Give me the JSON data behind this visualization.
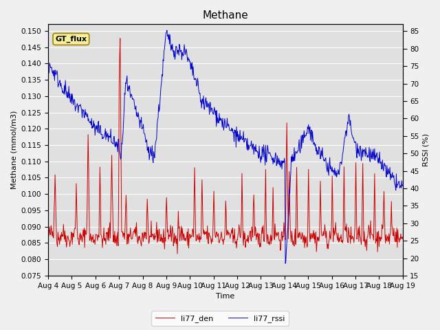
{
  "title": "Methane",
  "xlabel": "Time",
  "ylabel_left": "Methane (mmol/m3)",
  "ylabel_right": "RSSI (%)",
  "ylim_left": [
    0.075,
    0.152
  ],
  "ylim_right": [
    15,
    87
  ],
  "yticks_left": [
    0.075,
    0.08,
    0.085,
    0.09,
    0.095,
    0.1,
    0.105,
    0.11,
    0.115,
    0.12,
    0.125,
    0.13,
    0.135,
    0.14,
    0.145,
    0.15
  ],
  "yticks_right": [
    15,
    20,
    25,
    30,
    35,
    40,
    45,
    50,
    55,
    60,
    65,
    70,
    75,
    80,
    85
  ],
  "xtick_labels": [
    "Aug 4",
    "Aug 5",
    "Aug 6",
    "Aug 7",
    "Aug 8",
    "Aug 9",
    "Aug 10",
    "Aug 11",
    "Aug 12",
    "Aug 13",
    "Aug 14",
    "Aug 15",
    "Aug 16",
    "Aug 17",
    "Aug 18",
    "Aug 19"
  ],
  "color_den": "#cc0000",
  "color_rssi": "#0000cc",
  "legend_label_den": "li77_den",
  "legend_label_rssi": "li77_rssi",
  "annotation_text": "GT_flux",
  "background_color": "#e0e0e0",
  "fig_facecolor": "#f0f0f0",
  "grid_color": "#ffffff",
  "title_fontsize": 11,
  "axis_fontsize": 8,
  "tick_fontsize": 7.5
}
